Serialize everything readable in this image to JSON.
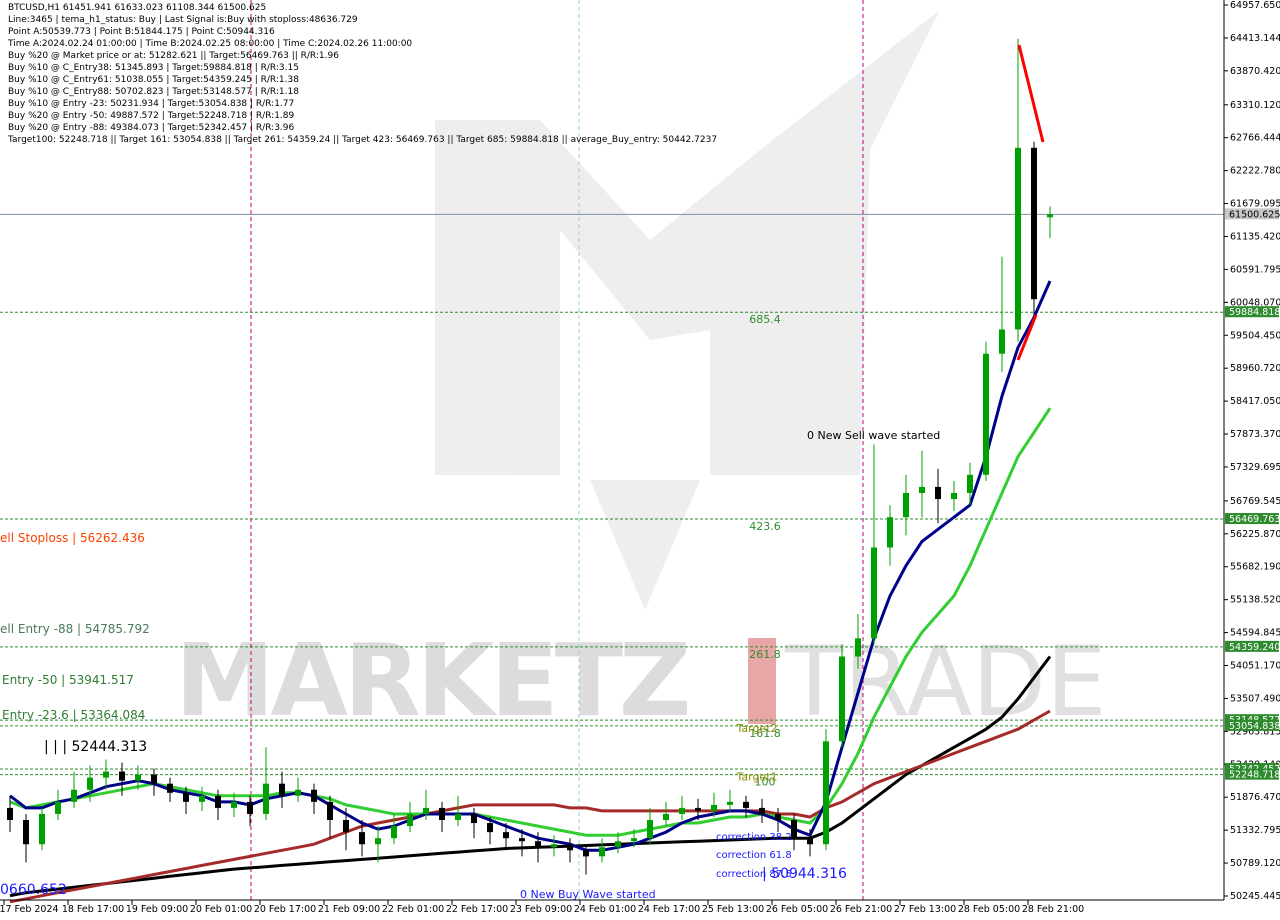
{
  "chart_data": {
    "type": "candlestick",
    "title": "BTCUSD,H1",
    "info": [
      "Line:3465 | tema_h1_status: Buy | Last Signal is:Buy with stoploss:48636.729",
      "Point A:50539.773 | Point B:51844.175 | Point C:50944.316",
      "Time A:2024.02.24 01:00:00 | Time B:2024.02.25 08:00:00 | Time C:2024.02.26 11:00:00",
      "Buy %20 @ Market price or at: 51282.621 || Target:56469.763 || R/R:1.96",
      "Buy %10 @ C_Entry38: 51345.893 | Target:59884.818 | R/R:3.15",
      "Buy %10 @ C_Entry61: 51038.055 | Target:54359.245 | R/R:1.38",
      "Buy %10 @ C_Entry88: 50702.823 | Target:53148.577 | R/R:1.18",
      "Buy %10 @ Entry -23: 50231.934 | Target:53054.838 | R/R:1.77",
      "Buy %20 @ Entry -50: 49887.572 | Target:52248.718 | R/R:1.89",
      "Buy %20 @ Entry -88: 49384.073 | Target:52342.457 | R/R:3.96",
      "Target100: 52248.718 || Target 161: 53054.838 || Target 261: 54359.24 || Target 423: 56469.763 || Target 685: 59884.818 || average_Buy_entry: 50442.7237"
    ],
    "watermark_left": "MARKETZ",
    "watermark_right": "TRADE",
    "colors": {
      "up": "#00a000",
      "down": "#000000"
    },
    "ylim": [
      50179.4,
      65040.2
    ],
    "yticks": [
      {
        "value": 64957.65,
        "label": "64957.650"
      },
      64413.144,
      {
        "value": 63870.42,
        "label": "63870.420"
      },
      {
        "value": 63310.12,
        "label": "63310.120"
      },
      62766.444,
      {
        "value": 62222.78,
        "label": "62222.780"
      },
      61679.095,
      {
        "value": 61135.42,
        "label": "61135.420"
      },
      60591.795,
      {
        "value": 60048.07,
        "label": "60048.070"
      },
      {
        "value": 59504.45,
        "label": "59504.450"
      },
      {
        "value": 58960.72,
        "label": "58960.720"
      },
      {
        "value": 58417.05,
        "label": "58417.050"
      },
      {
        "value": 57873.37,
        "label": "57873.370"
      },
      57329.695,
      56769.545,
      {
        "value": 56225.87,
        "label": "56225.870"
      },
      {
        "value": 55682.19,
        "label": "55682.190"
      },
      {
        "value": 55138.52,
        "label": "55138.520"
      },
      54594.845,
      {
        "value": 54051.17,
        "label": "54051.170"
      },
      {
        "value": 53507.49,
        "label": "53507.490"
      },
      52963.815,
      {
        "value": 52420.14,
        "label": "52420.140"
      },
      {
        "value": 51876.47,
        "label": "51876.470"
      },
      51332.795,
      {
        "value": 50789.12,
        "label": "50789.120"
      },
      50245.445
    ],
    "xlabels": [
      "17 Feb 2024",
      "18 Feb 17:00",
      "19 Feb 09:00",
      "20 Feb 01:00",
      "20 Feb 17:00",
      "21 Feb 09:00",
      "22 Feb 01:00",
      "22 Feb 17:00",
      "23 Feb 09:00",
      "24 Feb 01:00",
      "24 Feb 17:00",
      "25 Feb 13:00",
      "26 Feb 05:00",
      "26 Feb 21:00",
      "27 Feb 13:00",
      "28 Feb 05:00",
      "28 Feb 21:00"
    ],
    "current": {
      "price": 61500.625,
      "price_label": "61500.625"
    },
    "levels": [
      {
        "price": 59884.818,
        "price_label": "59884.818",
        "fib": "685.4"
      },
      {
        "price": 56469.763,
        "price_label": "56469.763",
        "fib": "423.6"
      },
      {
        "price": 54359.24,
        "price_label": "54359.240",
        "fib": "261.8"
      },
      {
        "price": 53148.577,
        "price_label": "53148.577"
      },
      {
        "price": 53054.838,
        "price_label": "53054.838",
        "fib": "161.8",
        "target": "Target2"
      },
      {
        "price": 52342.457,
        "price_label": "52342.457"
      },
      {
        "price": 52248.718,
        "price_label": "52248.718",
        "fib": "100",
        "target": "Target1"
      }
    ],
    "annotations": [
      "ell Stoploss | 56262.436",
      "ell Entry -88 | 54785.792",
      "Entry -50 | 53941.517",
      "Entry -23.6 | 53364.084",
      "| | | 52444.313",
      "0660.652",
      "| 50944.316",
      "0 New Sell wave started",
      "0 New Buy Wave started",
      "correction 38.2",
      "correction 61.8",
      "correction 87.5"
    ],
    "ohlc": [
      [
        51700,
        51900,
        51300,
        51500
      ],
      [
        51500,
        51600,
        50800,
        51100
      ],
      [
        51100,
        51700,
        51000,
        51600
      ],
      [
        51600,
        52000,
        51500,
        51800
      ],
      [
        51800,
        52300,
        51700,
        52000
      ],
      [
        52000,
        52400,
        51800,
        52200
      ],
      [
        52200,
        52500,
        52000,
        52300
      ],
      [
        52300,
        52450,
        51900,
        52150
      ],
      [
        52150,
        52400,
        52000,
        52250
      ],
      [
        52250,
        52350,
        51900,
        52100
      ],
      [
        52100,
        52200,
        51800,
        51950
      ],
      [
        51950,
        52050,
        51600,
        51800
      ],
      [
        51800,
        52050,
        51650,
        51900
      ],
      [
        51900,
        52000,
        51500,
        51700
      ],
      [
        51700,
        51950,
        51550,
        51800
      ],
      [
        51800,
        51900,
        51400,
        51600
      ],
      [
        51600,
        52700,
        51500,
        52100
      ],
      [
        52100,
        52300,
        51700,
        51900
      ],
      [
        51900,
        52200,
        51800,
        52000
      ],
      [
        52000,
        52100,
        51600,
        51800
      ],
      [
        51800,
        51900,
        51200,
        51500
      ],
      [
        51500,
        51700,
        51000,
        51300
      ],
      [
        51300,
        51500,
        50900,
        51100
      ],
      [
        51100,
        51400,
        50800,
        51200
      ],
      [
        51200,
        51600,
        51100,
        51400
      ],
      [
        51400,
        51800,
        51300,
        51600
      ],
      [
        51600,
        52000,
        51500,
        51700
      ],
      [
        51700,
        51800,
        51300,
        51500
      ],
      [
        51500,
        51900,
        51400,
        51600
      ],
      [
        51600,
        51700,
        51200,
        51450
      ],
      [
        51450,
        51550,
        51100,
        51300
      ],
      [
        51300,
        51450,
        51000,
        51200
      ],
      [
        51200,
        51350,
        50900,
        51150
      ],
      [
        51150,
        51300,
        50800,
        51050
      ],
      [
        51050,
        51250,
        50900,
        51100
      ],
      [
        51100,
        51200,
        50800,
        51000
      ],
      [
        51000,
        51100,
        50600,
        50900
      ],
      [
        50900,
        51200,
        50800,
        51050
      ],
      [
        51050,
        51300,
        50950,
        51150
      ],
      [
        51150,
        51350,
        51050,
        51200
      ],
      [
        51200,
        51700,
        51100,
        51500
      ],
      [
        51500,
        51800,
        51400,
        51600
      ],
      [
        51600,
        51900,
        51500,
        51700
      ],
      [
        51700,
        51850,
        51500,
        51650
      ],
      [
        51650,
        51950,
        51550,
        51750
      ],
      [
        51750,
        52000,
        51650,
        51800
      ],
      [
        51800,
        51900,
        51550,
        51700
      ],
      [
        51700,
        51850,
        51450,
        51600
      ],
      [
        51600,
        51700,
        51300,
        51500
      ],
      [
        51500,
        51600,
        51000,
        51200
      ],
      [
        51200,
        51350,
        50900,
        51100
      ],
      [
        51100,
        53000,
        51000,
        52800
      ],
      [
        52800,
        54400,
        52700,
        54200
      ],
      [
        54200,
        54900,
        54000,
        54500
      ],
      [
        54500,
        57700,
        54400,
        56000
      ],
      [
        56000,
        56700,
        55700,
        56500
      ],
      [
        56500,
        57200,
        56200,
        56900
      ],
      [
        56900,
        57600,
        56500,
        57000
      ],
      [
        57000,
        57300,
        56400,
        56800
      ],
      [
        56800,
        57100,
        56600,
        56900
      ],
      [
        56900,
        57400,
        56700,
        57200
      ],
      [
        57200,
        59400,
        57100,
        59200
      ],
      [
        59200,
        60800,
        58900,
        59600
      ],
      [
        59600,
        64400,
        59400,
        62600
      ],
      [
        62600,
        62700,
        59800,
        60100
      ],
      [
        61451.941,
        61633.023,
        61108.344,
        61500.625
      ]
    ],
    "lines": [
      {
        "color": "#000000",
        "values": [
          50250,
          50300,
          50330,
          50360,
          50390,
          50420,
          50450,
          50480,
          50510,
          50540,
          50570,
          50600,
          50630,
          50660,
          50690,
          50710,
          50730,
          50750,
          50770,
          50790,
          50810,
          50830,
          50850,
          50870,
          50890,
          50910,
          50930,
          50950,
          50970,
          50990,
          51010,
          51030,
          51040,
          51050,
          51060,
          51070,
          51080,
          51090,
          51100,
          51110,
          51120,
          51130,
          51140,
          51150,
          51160,
          51170,
          51180,
          51190,
          51200,
          51200,
          51200,
          51300,
          51450,
          51650,
          51850,
          52050,
          52250,
          52400,
          52550,
          52700,
          52850,
          53000,
          53200,
          53500,
          53850,
          54200
        ]
      },
      {
        "color": "#a52a2a",
        "values": [
          50150,
          50200,
          50250,
          50300,
          50350,
          50400,
          50450,
          50500,
          50550,
          50600,
          50650,
          50700,
          50750,
          50800,
          50850,
          50900,
          50950,
          51000,
          51050,
          51100,
          51200,
          51300,
          51400,
          51450,
          51500,
          51550,
          51600,
          51650,
          51700,
          51750,
          51750,
          51750,
          51750,
          51750,
          51750,
          51700,
          51700,
          51650,
          51650,
          51650,
          51650,
          51650,
          51650,
          51650,
          51650,
          51650,
          51650,
          51650,
          51600,
          51600,
          51550,
          51700,
          51800,
          51950,
          52100,
          52200,
          52300,
          52400,
          52500,
          52600,
          52700,
          52800,
          52900,
          53000,
          53150,
          53300
        ]
      },
      {
        "color": "#32cd32",
        "values": [
          51800,
          51700,
          51750,
          51800,
          51850,
          51900,
          51950,
          52000,
          52050,
          52100,
          52050,
          52000,
          51950,
          51900,
          51900,
          51900,
          51900,
          51950,
          51950,
          51900,
          51850,
          51750,
          51700,
          51650,
          51600,
          51600,
          51600,
          51600,
          51600,
          51600,
          51550,
          51500,
          51450,
          51400,
          51350,
          51300,
          51250,
          51250,
          51250,
          51300,
          51350,
          51400,
          51450,
          51450,
          51500,
          51550,
          51550,
          51600,
          51550,
          51500,
          51450,
          51700,
          52100,
          52600,
          53200,
          53700,
          54200,
          54600,
          54900,
          55200,
          55700,
          56300,
          56900,
          57500,
          57900,
          58300
        ]
      },
      {
        "color": "#00008b",
        "values": [
          51900,
          51700,
          51700,
          51800,
          51850,
          51950,
          52050,
          52100,
          52150,
          52100,
          52000,
          51950,
          51900,
          51800,
          51800,
          51750,
          51850,
          51900,
          51950,
          51900,
          51750,
          51600,
          51450,
          51350,
          51400,
          51500,
          51600,
          51600,
          51600,
          51600,
          51500,
          51400,
          51300,
          51200,
          51150,
          51100,
          51000,
          51000,
          51050,
          51100,
          51200,
          51300,
          51450,
          51550,
          51600,
          51650,
          51650,
          51600,
          51500,
          51350,
          51250,
          51800,
          52700,
          53600,
          54500,
          55200,
          55700,
          56100,
          56300,
          56500,
          56700,
          57500,
          58500,
          59300,
          59800,
          60400
        ]
      }
    ]
  }
}
